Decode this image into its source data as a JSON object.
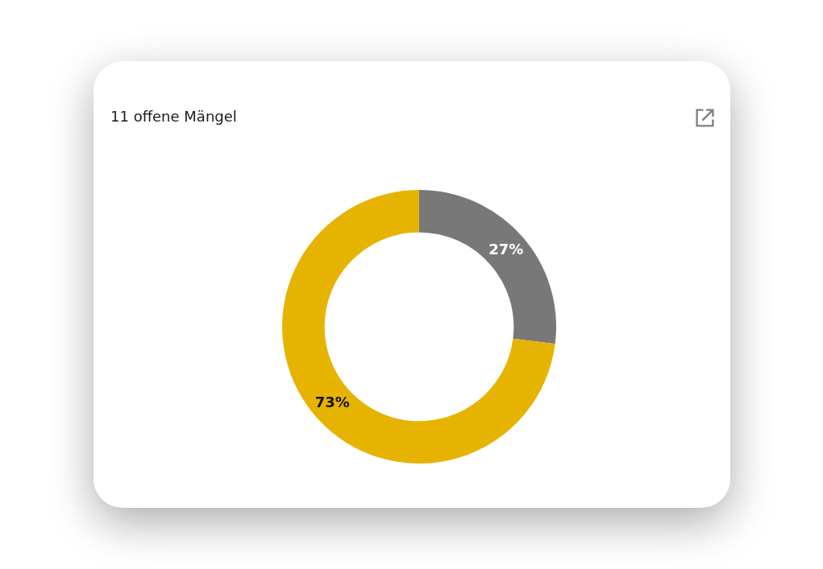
{
  "chart_data": {
    "type": "donut",
    "title": "11 offene Mängel",
    "categories": [
      null,
      null
    ],
    "values": [
      27,
      73
    ],
    "colors": [
      "#787878",
      "#e6b400"
    ],
    "value_labels": [
      "27%",
      "73%"
    ]
  }
}
